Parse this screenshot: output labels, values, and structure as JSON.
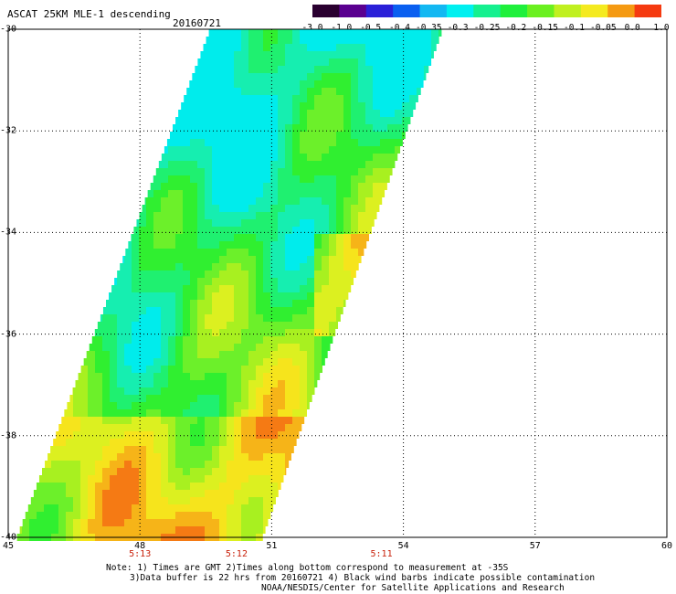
{
  "header": {
    "title": "ASCAT 25KM MLE-1 descending",
    "date": "20160721"
  },
  "colorbar": {
    "labels": [
      "-3.0",
      "-1.0",
      "-0.5",
      "-0.4",
      "-0.35",
      "-0.3",
      "-0.25",
      "-0.2",
      "-0.15",
      "-0.1",
      "-0.05",
      "0.0",
      "1.0"
    ],
    "colors": [
      "#2a0030",
      "#5a0090",
      "#2a20d8",
      "#0a5ff0",
      "#13b8f2",
      "#00f0f0",
      "#15f08f",
      "#1ff03c",
      "#6af020",
      "#c0f020",
      "#f4ea20",
      "#f59a12",
      "#f53a10"
    ]
  },
  "map": {
    "lon_range": [
      45,
      60
    ],
    "lat_range": [
      -40,
      -30
    ],
    "x_ticks": [
      "45",
      "48",
      "51",
      "54",
      "57",
      "60"
    ],
    "y_ticks": [
      "-30",
      "-32",
      "-34",
      "-36",
      "-38",
      "-40"
    ],
    "time_labels": [
      "5:13",
      "5:12",
      "5:11"
    ],
    "time_label_lons": [
      48,
      50.2,
      53.5
    ],
    "swath_corners": [
      [
        49.6,
        -30
      ],
      [
        54.9,
        -30
      ],
      [
        50.8,
        -40
      ],
      [
        45.2,
        -40
      ]
    ]
  },
  "notes": {
    "line1": "Note: 1) Times are GMT 2)Times along bottom correspond to measurement at -35S",
    "line2": "3)Data buffer is 22 hrs from 20160721 4) Black wind barbs indicate possible contamination",
    "line3": "NOAA/NESDIS/Center for Satellite Applications and Research"
  }
}
